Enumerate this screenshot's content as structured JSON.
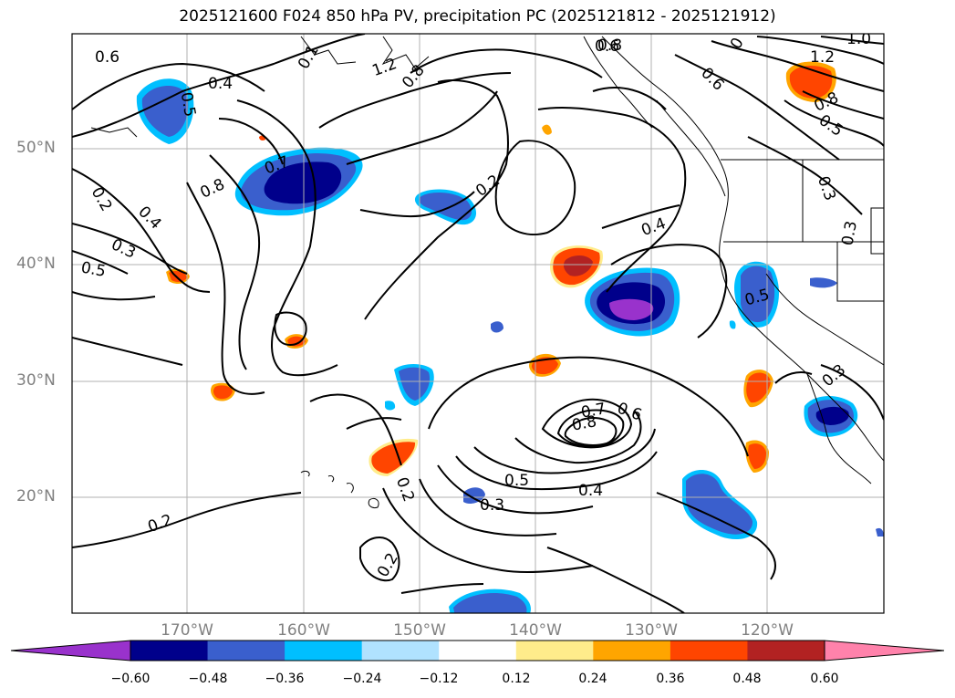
{
  "title": "2025121600 F024 850 hPa PV, precipitation PC (2025121812 - 2025121912)",
  "latitude_labels": [
    "50°N",
    "40°N",
    "30°N",
    "20°N"
  ],
  "longitude_labels": [
    "170°W",
    "160°W",
    "150°W",
    "140°W",
    "130°W",
    "120°W"
  ],
  "contour_labels": [
    "0.6",
    "0.4",
    "0.5",
    "0.1",
    "1.2",
    "0.8",
    "0.6",
    "0.8",
    "0",
    "0.6",
    "1.0",
    "1.2",
    "0.8",
    "0.5",
    "0.7",
    "0.8",
    "0.2",
    "0.4",
    "0.3",
    "0.5",
    "0.2",
    "0.4",
    "0.3",
    "0.3",
    "0.5",
    "0.7",
    "0.6",
    "0.8",
    "0.5",
    "0.4",
    "0.3",
    "0.2",
    "0.2",
    "0.2",
    "0.3"
  ],
  "colorbar": {
    "colors": [
      "#9932CC",
      "#00008B",
      "#3A5FCD",
      "#00BFFF",
      "#B0E2FF",
      "#FFFFFF",
      "#FFEC8B",
      "#FFA500",
      "#FF4500",
      "#B22222",
      "#FF82AB"
    ],
    "tick_labels": [
      "−0.60",
      "−0.48",
      "−0.36",
      "−0.24",
      "−0.12",
      "0.12",
      "0.24",
      "0.36",
      "0.48",
      "0.60"
    ]
  },
  "grid": true
}
